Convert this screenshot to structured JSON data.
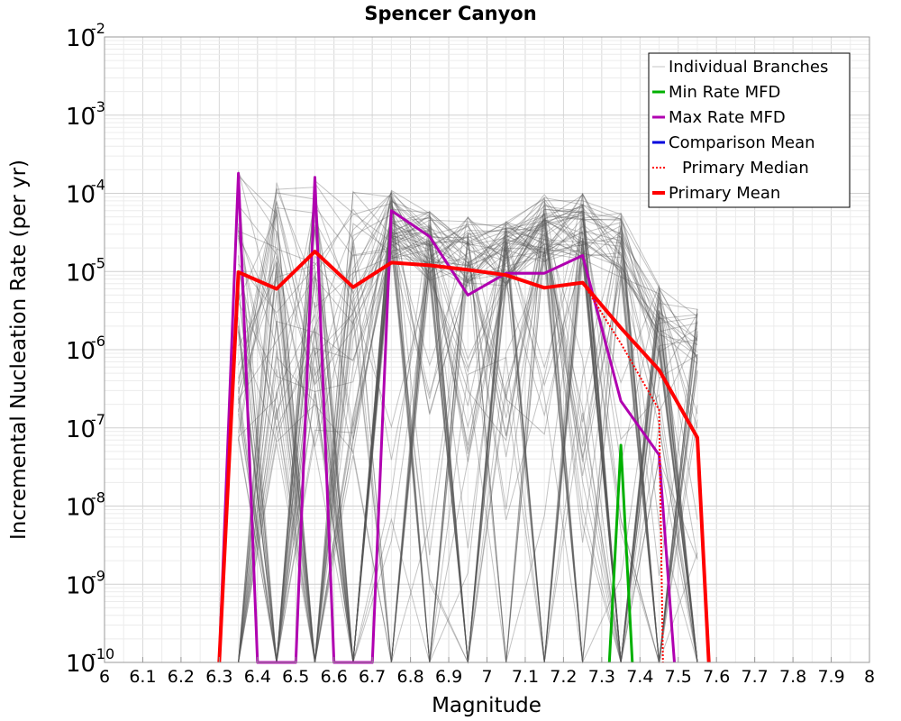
{
  "chart_data": {
    "type": "line",
    "title": "Spencer Canyon",
    "xlabel": "Magnitude",
    "ylabel": "Incremental Nucleation Rate (per yr)",
    "xlim": [
      6,
      8
    ],
    "ylim": [
      1e-10,
      0.01
    ],
    "y_scale": "log",
    "grid": true,
    "legend_position": "top-right",
    "x_ticks": [
      "6",
      "6.1",
      "6.2",
      "6.3",
      "6.4",
      "6.5",
      "6.6",
      "6.7",
      "6.8",
      "6.9",
      "7",
      "7.1",
      "7.2",
      "7.3",
      "7.4",
      "7.5",
      "7.6",
      "7.7",
      "7.8",
      "7.9",
      "8"
    ],
    "y_ticks": [
      {
        "value": 1e-10,
        "base": "10",
        "exp": "-10"
      },
      {
        "value": 1e-09,
        "base": "10",
        "exp": "-9"
      },
      {
        "value": 1e-08,
        "base": "10",
        "exp": "-8"
      },
      {
        "value": 1e-07,
        "base": "10",
        "exp": "-7"
      },
      {
        "value": 1e-06,
        "base": "10",
        "exp": "-6"
      },
      {
        "value": 1e-05,
        "base": "10",
        "exp": "-5"
      },
      {
        "value": 0.0001,
        "base": "10",
        "exp": "-4"
      },
      {
        "value": 0.001,
        "base": "10",
        "exp": "-3"
      },
      {
        "value": 0.01,
        "base": "10",
        "exp": "-2"
      }
    ],
    "branch_bins": [
      6.35,
      6.45,
      6.55,
      6.65,
      6.75,
      6.85,
      6.95,
      7.05,
      7.15,
      7.25,
      7.35,
      7.45,
      7.55
    ],
    "series": [
      {
        "name": "Individual Branches",
        "color": "#555555",
        "style": "thin",
        "count": "many",
        "peaks": [
          {
            "x": 6.35,
            "y": 0.0002
          },
          {
            "x": 6.45,
            "y": 0.00016
          },
          {
            "x": 6.55,
            "y": 0.00016
          },
          {
            "x": 6.65,
            "y": 0.00011
          },
          {
            "x": 6.75,
            "y": 0.00011
          },
          {
            "x": 6.85,
            "y": 6e-05
          },
          {
            "x": 6.95,
            "y": 5e-05
          },
          {
            "x": 7.05,
            "y": 5e-05
          },
          {
            "x": 7.15,
            "y": 0.0001
          },
          {
            "x": 7.25,
            "y": 0.0001
          },
          {
            "x": 7.35,
            "y": 6e-05
          },
          {
            "x": 7.45,
            "y": 7e-06
          },
          {
            "x": 7.55,
            "y": 3.5e-06
          }
        ]
      },
      {
        "name": "Min Rate MFD",
        "color": "#00b000",
        "style": "solid",
        "points": [
          {
            "x": 7.32,
            "y": 1e-10
          },
          {
            "x": 7.35,
            "y": 6e-08
          },
          {
            "x": 7.38,
            "y": 1e-10
          }
        ]
      },
      {
        "name": "Max Rate MFD",
        "color": "#b000b0",
        "style": "solid",
        "points": [
          {
            "x": 6.3,
            "y": 1e-10
          },
          {
            "x": 6.35,
            "y": 0.00018
          },
          {
            "x": 6.4,
            "y": 1e-10
          },
          {
            "x": 6.5,
            "y": 1e-10
          },
          {
            "x": 6.55,
            "y": 0.00016
          },
          {
            "x": 6.6,
            "y": 1e-10
          },
          {
            "x": 6.7,
            "y": 1e-10
          },
          {
            "x": 6.75,
            "y": 6e-05
          },
          {
            "x": 6.85,
            "y": 2.8e-05
          },
          {
            "x": 6.95,
            "y": 5e-06
          },
          {
            "x": 7.05,
            "y": 9.5e-06
          },
          {
            "x": 7.15,
            "y": 9.5e-06
          },
          {
            "x": 7.25,
            "y": 1.6e-05
          },
          {
            "x": 7.35,
            "y": 2.2e-07
          },
          {
            "x": 7.45,
            "y": 4.5e-08
          },
          {
            "x": 7.49,
            "y": 1e-10
          }
        ]
      },
      {
        "name": "Comparison Mean",
        "color": "#0000dd",
        "style": "solid",
        "points": []
      },
      {
        "name": "Primary Median",
        "color": "#ff0000",
        "style": "dotted",
        "points": [
          {
            "x": 7.25,
            "y": 7.2e-06
          },
          {
            "x": 7.35,
            "y": 1.2e-06
          },
          {
            "x": 7.45,
            "y": 1.7e-07
          },
          {
            "x": 7.46,
            "y": 1e-10
          }
        ]
      },
      {
        "name": "Primary Mean",
        "color": "#ff0000",
        "style": "thick",
        "points": [
          {
            "x": 6.3,
            "y": 1e-10
          },
          {
            "x": 6.35,
            "y": 9.8e-06
          },
          {
            "x": 6.45,
            "y": 6e-06
          },
          {
            "x": 6.55,
            "y": 1.8e-05
          },
          {
            "x": 6.65,
            "y": 6.3e-06
          },
          {
            "x": 6.75,
            "y": 1.3e-05
          },
          {
            "x": 6.85,
            "y": 1.2e-05
          },
          {
            "x": 6.95,
            "y": 1.05e-05
          },
          {
            "x": 7.05,
            "y": 9e-06
          },
          {
            "x": 7.15,
            "y": 6.2e-06
          },
          {
            "x": 7.25,
            "y": 7.2e-06
          },
          {
            "x": 7.35,
            "y": 1.9e-06
          },
          {
            "x": 7.45,
            "y": 5.5e-07
          },
          {
            "x": 7.55,
            "y": 7.5e-08
          },
          {
            "x": 7.58,
            "y": 1e-10
          }
        ]
      }
    ]
  }
}
